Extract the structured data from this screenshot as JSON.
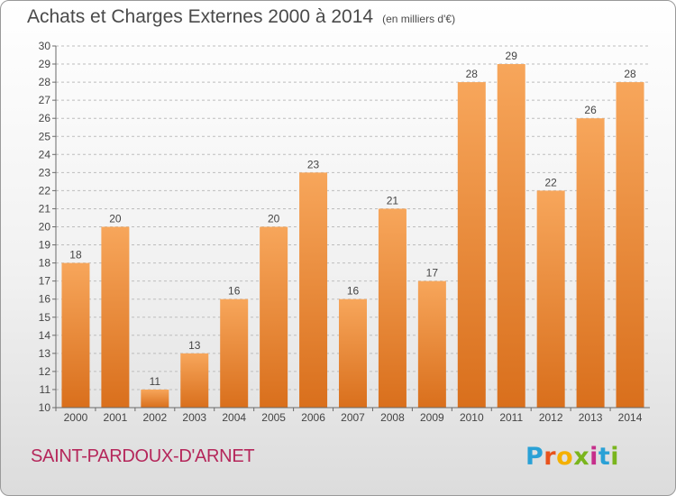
{
  "header": {
    "title": "Achats et Charges Externes 2000 à 2014",
    "unit": "(en milliers d'€)"
  },
  "footer": {
    "commune": "SAINT-PARDOUX-D'ARNET",
    "brand_letters": [
      "P",
      "r",
      "o",
      "x",
      "i",
      "t",
      "i"
    ],
    "brand_colors": [
      "#2aa1d6",
      "#e8531d",
      "#f4b000",
      "#7ab51d",
      "#c62f8b",
      "#2aa1d6",
      "#7ab51d"
    ]
  },
  "colors": {
    "bar_top": "#f7a65b",
    "bar_bottom": "#d96f1c",
    "axis": "#6a6a6a",
    "grid": "#bdbdbd"
  },
  "chart_data": {
    "type": "bar",
    "categories": [
      "2000",
      "2001",
      "2002",
      "2003",
      "2004",
      "2005",
      "2006",
      "2007",
      "2008",
      "2009",
      "2010",
      "2011",
      "2012",
      "2013",
      "2014"
    ],
    "values": [
      18,
      20,
      11,
      13,
      16,
      20,
      23,
      16,
      21,
      17,
      28,
      29,
      22,
      26,
      28
    ],
    "ylim": [
      10,
      30
    ],
    "yticks": [
      10,
      11,
      12,
      13,
      14,
      15,
      16,
      17,
      18,
      19,
      20,
      21,
      22,
      23,
      24,
      25,
      26,
      27,
      28,
      29,
      30
    ],
    "grid": true,
    "data_labels": true,
    "xlabel": "",
    "ylabel": ""
  }
}
